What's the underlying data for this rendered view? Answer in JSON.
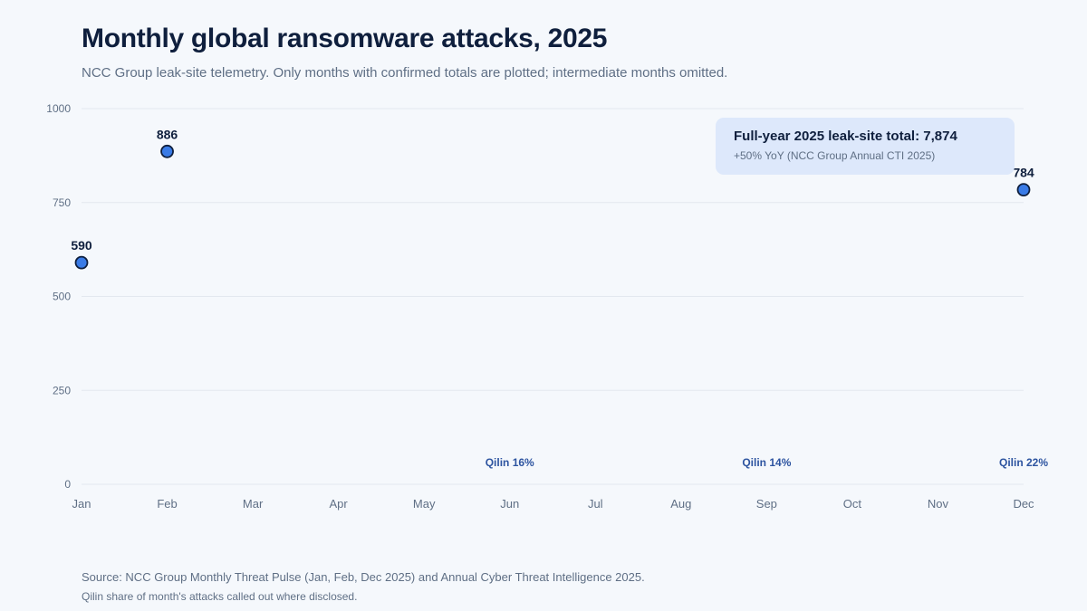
{
  "title": "Monthly global ransomware attacks, 2025",
  "subtitle": "NCC Group leak-site telemetry. Only months with confirmed totals are plotted; intermediate months omitted.",
  "callout": {
    "title": "Full-year 2025 leak-site total: 7,874",
    "subtitle": "+50% YoY (NCC Group Annual CTI 2025)"
  },
  "source": "Source: NCC Group Monthly Threat Pulse (Jan, Feb, Dec 2025) and Annual Cyber Threat Intelligence 2025.",
  "note": "Qilin share of month's attacks called out where disclosed.",
  "colors": {
    "point_fill": "#3a7be6",
    "point_stroke": "#0f1f3d",
    "grid": "#e3e8ef",
    "qilin_text": "#2d54a0"
  },
  "chart_data": {
    "type": "scatter",
    "title": "Monthly global ransomware attacks, 2025",
    "xlabel": "",
    "ylabel": "",
    "categories": [
      "Jan",
      "Feb",
      "Mar",
      "Apr",
      "May",
      "Jun",
      "Jul",
      "Aug",
      "Sep",
      "Oct",
      "Nov",
      "Dec"
    ],
    "ylim": [
      0,
      1000
    ],
    "yticks": [
      0,
      250,
      500,
      750,
      1000
    ],
    "grid": true,
    "points": [
      {
        "month": "Jan",
        "value": 590
      },
      {
        "month": "Feb",
        "value": 886
      },
      {
        "month": "Dec",
        "value": 784
      }
    ],
    "annotations": [
      {
        "month": "Jun",
        "text": "Qilin 16%"
      },
      {
        "month": "Sep",
        "text": "Qilin 14%"
      },
      {
        "month": "Dec",
        "text": "Qilin 22%"
      }
    ]
  }
}
